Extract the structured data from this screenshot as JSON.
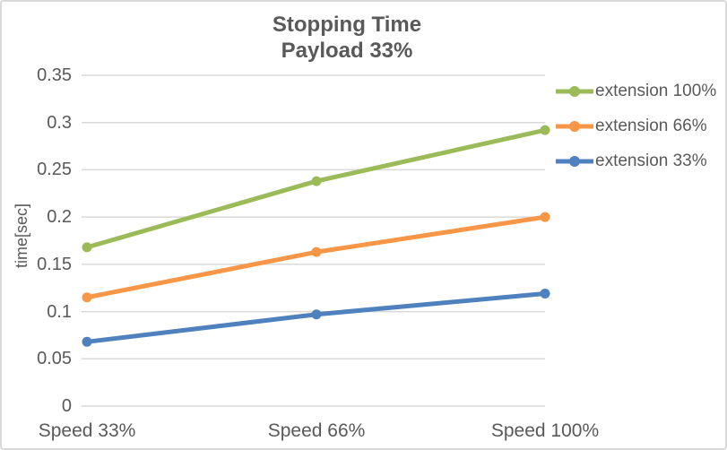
{
  "chart": {
    "title_line1": "Stopping Time",
    "title_line2": "Payload 33%"
  },
  "colors": {
    "text": "#595959",
    "gridline": "#d9d9d9",
    "border": "#d9d9d9",
    "background": "#ffffff",
    "series_green": "#9BBB59",
    "series_orange": "#F79646",
    "series_blue": "#4E81BD"
  },
  "chart_data": {
    "type": "line",
    "title": "Stopping Time",
    "subtitle": "Payload 33%",
    "categories": [
      "Speed 33%",
      "Speed 66%",
      "Speed 100%"
    ],
    "series": [
      {
        "name": "extension 100%",
        "color": "#9BBB59",
        "values": [
          0.168,
          0.238,
          0.292
        ]
      },
      {
        "name": "extension 66%",
        "color": "#F79646",
        "values": [
          0.115,
          0.163,
          0.2
        ]
      },
      {
        "name": "extension 33%",
        "color": "#4E81BD",
        "values": [
          0.068,
          0.097,
          0.119
        ]
      }
    ],
    "xlabel": "",
    "ylabel": "time[sec]",
    "ylim": [
      0,
      0.35
    ],
    "y_ticks": [
      "0",
      "0.05",
      "0.1",
      "0.15",
      "0.2",
      "0.25",
      "0.3",
      "0.35"
    ],
    "grid": true,
    "markers": true,
    "legend_position": "right"
  }
}
